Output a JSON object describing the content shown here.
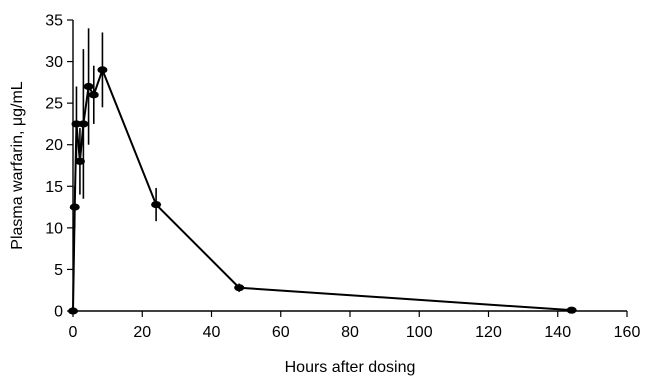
{
  "chart_data": {
    "type": "line",
    "xlabel": "Hours after dosing",
    "ylabel": "Plasma warfarin, μg/mL",
    "xlim": [
      0,
      160
    ],
    "ylim": [
      0,
      35
    ],
    "xticks": [
      0,
      20,
      40,
      60,
      80,
      100,
      120,
      140,
      160
    ],
    "yticks": [
      0,
      5,
      10,
      15,
      20,
      25,
      30,
      35
    ],
    "grid": false,
    "legend": "none",
    "series": [
      {
        "marker": "circle",
        "points": [
          {
            "x": 0,
            "y": 0,
            "err": 0
          },
          {
            "x": 0.5,
            "y": 12.5,
            "err": 2.5
          },
          {
            "x": 1,
            "y": 22.5,
            "err": 4.5
          },
          {
            "x": 2,
            "y": 18,
            "err": 4
          },
          {
            "x": 3,
            "y": 22.5,
            "err": 9
          },
          {
            "x": 4.5,
            "y": 27,
            "err": 7
          },
          {
            "x": 6,
            "y": 26,
            "err": 3.5
          },
          {
            "x": 8.5,
            "y": 29,
            "err": 4.5
          },
          {
            "x": 24,
            "y": 12.8,
            "err": 2
          },
          {
            "x": 48,
            "y": 2.8,
            "err": 0.5
          },
          {
            "x": 144,
            "y": 0.1,
            "err": 0
          }
        ]
      }
    ]
  }
}
